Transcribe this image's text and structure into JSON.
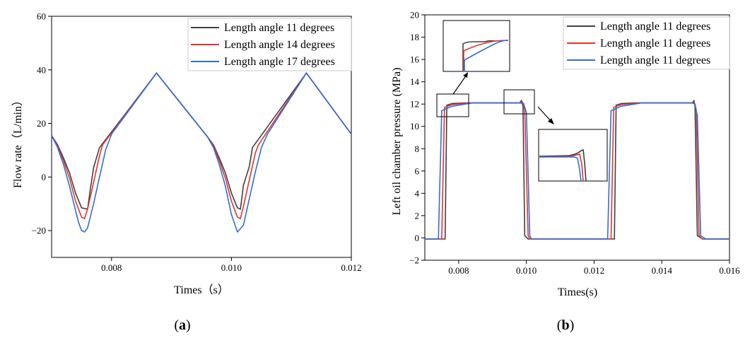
{
  "chart_data": [
    {
      "panel": "(a)",
      "type": "line",
      "xlabel": "Times（s）",
      "ylabel": "Flow rate（L/min）",
      "xlim": [
        0.007,
        0.012
      ],
      "ylim": [
        -30,
        60
      ],
      "xticks": [
        0.008,
        0.01,
        0.012
      ],
      "xtick_labels": [
        "0.008",
        "0.010",
        "0.012"
      ],
      "yticks": [
        -20,
        0,
        20,
        40,
        60
      ],
      "ytick_labels": [
        "−20",
        "0",
        "20",
        "40",
        "60"
      ],
      "legend_position": "top-right",
      "series": [
        {
          "name": "Length angle 11 degrees",
          "color": "#404040",
          "points": [
            [
              0.007,
              15.5
            ],
            [
              0.0071,
              12
            ],
            [
              0.0072,
              7
            ],
            [
              0.0073,
              1.5
            ],
            [
              0.0074,
              -6
            ],
            [
              0.0075,
              -11.5
            ],
            [
              0.0076,
              -12
            ],
            [
              0.00765,
              -4
            ],
            [
              0.0077,
              3.5
            ],
            [
              0.0078,
              11
            ],
            [
              0.00875,
              38.8
            ],
            [
              0.0096,
              15
            ],
            [
              0.0097,
              12
            ],
            [
              0.0098,
              7
            ],
            [
              0.0099,
              1.5
            ],
            [
              0.01,
              -6
            ],
            [
              0.0101,
              -11.5
            ],
            [
              0.01015,
              -12
            ],
            [
              0.0102,
              -3
            ],
            [
              0.0103,
              4
            ],
            [
              0.01035,
              11
            ],
            [
              0.01125,
              38.8
            ],
            [
              0.012,
              16
            ]
          ]
        },
        {
          "name": "Length angle 14 degrees",
          "color": "#e8312f",
          "points": [
            [
              0.007,
              15.5
            ],
            [
              0.0071,
              11.5
            ],
            [
              0.0072,
              6
            ],
            [
              0.0073,
              -0.5
            ],
            [
              0.0074,
              -9
            ],
            [
              0.0075,
              -15
            ],
            [
              0.00755,
              -15.5
            ],
            [
              0.0076,
              -12
            ],
            [
              0.0077,
              -2
            ],
            [
              0.0078,
              8
            ],
            [
              0.00785,
              12
            ],
            [
              0.00875,
              38.8
            ],
            [
              0.0096,
              15
            ],
            [
              0.0097,
              11.5
            ],
            [
              0.0098,
              6
            ],
            [
              0.0099,
              -0.5
            ],
            [
              0.01,
              -9
            ],
            [
              0.0101,
              -15
            ],
            [
              0.01015,
              -15.5
            ],
            [
              0.0102,
              -11
            ],
            [
              0.0103,
              -1
            ],
            [
              0.0104,
              9
            ],
            [
              0.01045,
              12
            ],
            [
              0.01125,
              38.8
            ],
            [
              0.012,
              16
            ]
          ]
        },
        {
          "name": "Length angle 17 degrees",
          "color": "#2e6fd9",
          "points": [
            [
              0.007,
              15.5
            ],
            [
              0.0071,
              11
            ],
            [
              0.0072,
              4.5
            ],
            [
              0.0073,
              -3.5
            ],
            [
              0.0074,
              -12.5
            ],
            [
              0.00745,
              -17
            ],
            [
              0.0075,
              -20
            ],
            [
              0.00755,
              -20.5
            ],
            [
              0.0076,
              -19
            ],
            [
              0.0077,
              -10
            ],
            [
              0.0078,
              0
            ],
            [
              0.0079,
              10
            ],
            [
              0.008,
              16
            ],
            [
              0.00875,
              38.8
            ],
            [
              0.0096,
              15
            ],
            [
              0.0097,
              11
            ],
            [
              0.0098,
              4.5
            ],
            [
              0.0099,
              -3.5
            ],
            [
              0.01,
              -14
            ],
            [
              0.0101,
              -20.5
            ],
            [
              0.0102,
              -18
            ],
            [
              0.0103,
              -8
            ],
            [
              0.0104,
              2
            ],
            [
              0.0105,
              11
            ],
            [
              0.0106,
              16
            ],
            [
              0.01125,
              38.8
            ],
            [
              0.012,
              16
            ]
          ]
        }
      ]
    },
    {
      "panel": "(b)",
      "type": "line",
      "xlabel": "Times(s)",
      "ylabel": "Left oil chamber pressure (MPa)",
      "xlim": [
        0.007,
        0.016
      ],
      "ylim": [
        -2,
        20
      ],
      "xticks": [
        0.008,
        0.01,
        0.012,
        0.014,
        0.016
      ],
      "xtick_labels": [
        "0.008",
        "0.010",
        "0.012",
        "0.014",
        "0.016"
      ],
      "yticks": [
        -2,
        0,
        2,
        4,
        6,
        8,
        10,
        12,
        14,
        16,
        18,
        20
      ],
      "ytick_labels": [
        "−2",
        "0",
        "2",
        "4",
        "6",
        "8",
        "10",
        "12",
        "14",
        "16",
        "18",
        "20"
      ],
      "legend_position": "top-right",
      "series": [
        {
          "name": "Length angle 11 degrees",
          "color": "#404040",
          "points": [
            [
              0.007,
              -0.1
            ],
            [
              0.0076,
              -0.1
            ],
            [
              0.00765,
              11.9
            ],
            [
              0.0078,
              12.05
            ],
            [
              0.0082,
              12.1
            ],
            [
              0.0098,
              12.1
            ],
            [
              0.00985,
              12.3
            ],
            [
              0.0099,
              11.8
            ],
            [
              0.00995,
              0.2
            ],
            [
              0.01005,
              -0.1
            ],
            [
              0.0126,
              -0.1
            ],
            [
              0.01265,
              11.9
            ],
            [
              0.0128,
              12.05
            ],
            [
              0.0132,
              12.1
            ],
            [
              0.0149,
              12.1
            ],
            [
              0.01495,
              12.3
            ],
            [
              0.01498,
              11.8
            ],
            [
              0.01505,
              0.2
            ],
            [
              0.0152,
              -0.1
            ],
            [
              0.016,
              -0.1
            ]
          ]
        },
        {
          "name": "Length angle 11 degrees",
          "color": "#e8312f",
          "points": [
            [
              0.007,
              -0.1
            ],
            [
              0.0075,
              -0.1
            ],
            [
              0.00758,
              11.7
            ],
            [
              0.0078,
              11.95
            ],
            [
              0.0083,
              12.1
            ],
            [
              0.0098,
              12.1
            ],
            [
              0.00988,
              12.2
            ],
            [
              0.00995,
              11.5
            ],
            [
              0.01005,
              0.2
            ],
            [
              0.0101,
              -0.1
            ],
            [
              0.0125,
              -0.1
            ],
            [
              0.01258,
              11.7
            ],
            [
              0.0128,
              11.95
            ],
            [
              0.0133,
              12.1
            ],
            [
              0.0149,
              12.1
            ],
            [
              0.01496,
              12.15
            ],
            [
              0.01502,
              11.4
            ],
            [
              0.0151,
              0.2
            ],
            [
              0.0152,
              -0.1
            ],
            [
              0.016,
              -0.1
            ]
          ]
        },
        {
          "name": "Length angle 11 degrees",
          "color": "#2e6fd9",
          "points": [
            [
              0.007,
              -0.1
            ],
            [
              0.0074,
              -0.1
            ],
            [
              0.0075,
              11.4
            ],
            [
              0.0078,
              11.8
            ],
            [
              0.0084,
              12.1
            ],
            [
              0.0098,
              12.1
            ],
            [
              0.00992,
              12.05
            ],
            [
              0.01,
              11.2
            ],
            [
              0.0101,
              0.2
            ],
            [
              0.01015,
              -0.1
            ],
            [
              0.0124,
              -0.1
            ],
            [
              0.0125,
              11.4
            ],
            [
              0.0128,
              11.8
            ],
            [
              0.0134,
              12.1
            ],
            [
              0.0149,
              12.1
            ],
            [
              0.01498,
              12.0
            ],
            [
              0.01505,
              11.0
            ],
            [
              0.01515,
              0.2
            ],
            [
              0.0153,
              -0.1
            ],
            [
              0.016,
              -0.1
            ]
          ]
        }
      ]
    }
  ]
}
